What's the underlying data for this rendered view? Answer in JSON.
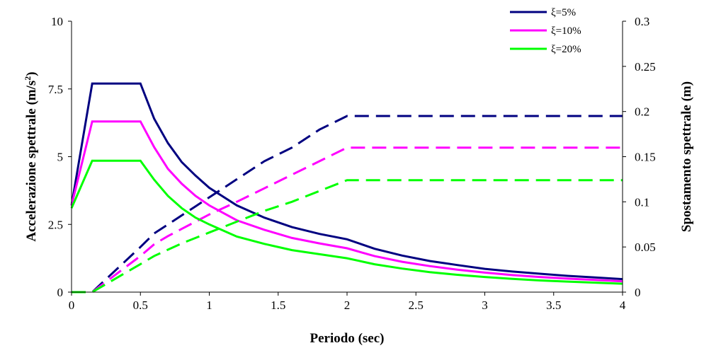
{
  "chart_data": {
    "type": "line",
    "title": "",
    "xlabel": "Periodo (sec)",
    "ylabel_left": "Accelerazione spettrale (m/s",
    "ylabel_left_sup": "2",
    "ylabel_left_close": ")",
    "ylabel_right": "Spostamento spettrale (m)",
    "xlim": [
      0,
      4
    ],
    "ylim_left": [
      0,
      10
    ],
    "ylim_right": [
      0,
      0.3
    ],
    "x_ticks": [
      "0",
      "0.5",
      "1",
      "1.5",
      "2",
      "2.5",
      "3",
      "3.5",
      "4"
    ],
    "y_ticks_left": [
      "0",
      "2.5",
      "5",
      "7.5",
      "10"
    ],
    "y_ticks_right": [
      "0",
      "0.05",
      "0.1",
      "0.15",
      "0.2",
      "0.25",
      "0.3"
    ],
    "grid": false,
    "legend_position": "top-right",
    "x": [
      0,
      0.15,
      0.5,
      0.6,
      0.7,
      0.8,
      0.9,
      1.0,
      1.2,
      1.4,
      1.6,
      1.8,
      2.0,
      2.2,
      2.4,
      2.6,
      2.8,
      3.0,
      3.2,
      3.4,
      3.6,
      3.8,
      4.0
    ],
    "series": [
      {
        "name": "ξ=5%",
        "color": "#000080",
        "acceleration": [
          3.2,
          7.7,
          7.7,
          6.4,
          5.5,
          4.8,
          4.3,
          3.85,
          3.2,
          2.75,
          2.4,
          2.15,
          1.95,
          1.6,
          1.35,
          1.15,
          1.0,
          0.86,
          0.76,
          0.68,
          0.6,
          0.54,
          0.48
        ],
        "displacement": [
          0,
          0,
          0.05,
          0.065,
          0.075,
          0.085,
          0.095,
          0.105,
          0.125,
          0.145,
          0.16,
          0.18,
          0.195,
          0.195,
          0.195,
          0.195,
          0.195,
          0.195,
          0.195,
          0.195,
          0.195,
          0.195,
          0.195
        ]
      },
      {
        "name": "ξ=10%",
        "color": "#ff00ff",
        "acceleration": [
          3.2,
          6.3,
          6.3,
          5.35,
          4.55,
          4.0,
          3.55,
          3.2,
          2.65,
          2.3,
          2.0,
          1.8,
          1.62,
          1.33,
          1.12,
          0.96,
          0.83,
          0.72,
          0.63,
          0.56,
          0.5,
          0.45,
          0.4
        ],
        "displacement": [
          0,
          0,
          0.04,
          0.053,
          0.062,
          0.07,
          0.078,
          0.086,
          0.1,
          0.115,
          0.13,
          0.145,
          0.16,
          0.16,
          0.16,
          0.16,
          0.16,
          0.16,
          0.16,
          0.16,
          0.16,
          0.16,
          0.16
        ]
      },
      {
        "name": "ξ=20%",
        "color": "#00ff00",
        "acceleration": [
          3.1,
          4.85,
          4.85,
          4.15,
          3.55,
          3.1,
          2.75,
          2.5,
          2.05,
          1.78,
          1.55,
          1.4,
          1.25,
          1.03,
          0.87,
          0.74,
          0.64,
          0.56,
          0.49,
          0.43,
          0.39,
          0.35,
          0.31
        ],
        "displacement": [
          0,
          0,
          0.031,
          0.04,
          0.047,
          0.054,
          0.06,
          0.066,
          0.078,
          0.09,
          0.1,
          0.112,
          0.124,
          0.124,
          0.124,
          0.124,
          0.124,
          0.124,
          0.124,
          0.124,
          0.124,
          0.124,
          0.124
        ]
      }
    ]
  }
}
